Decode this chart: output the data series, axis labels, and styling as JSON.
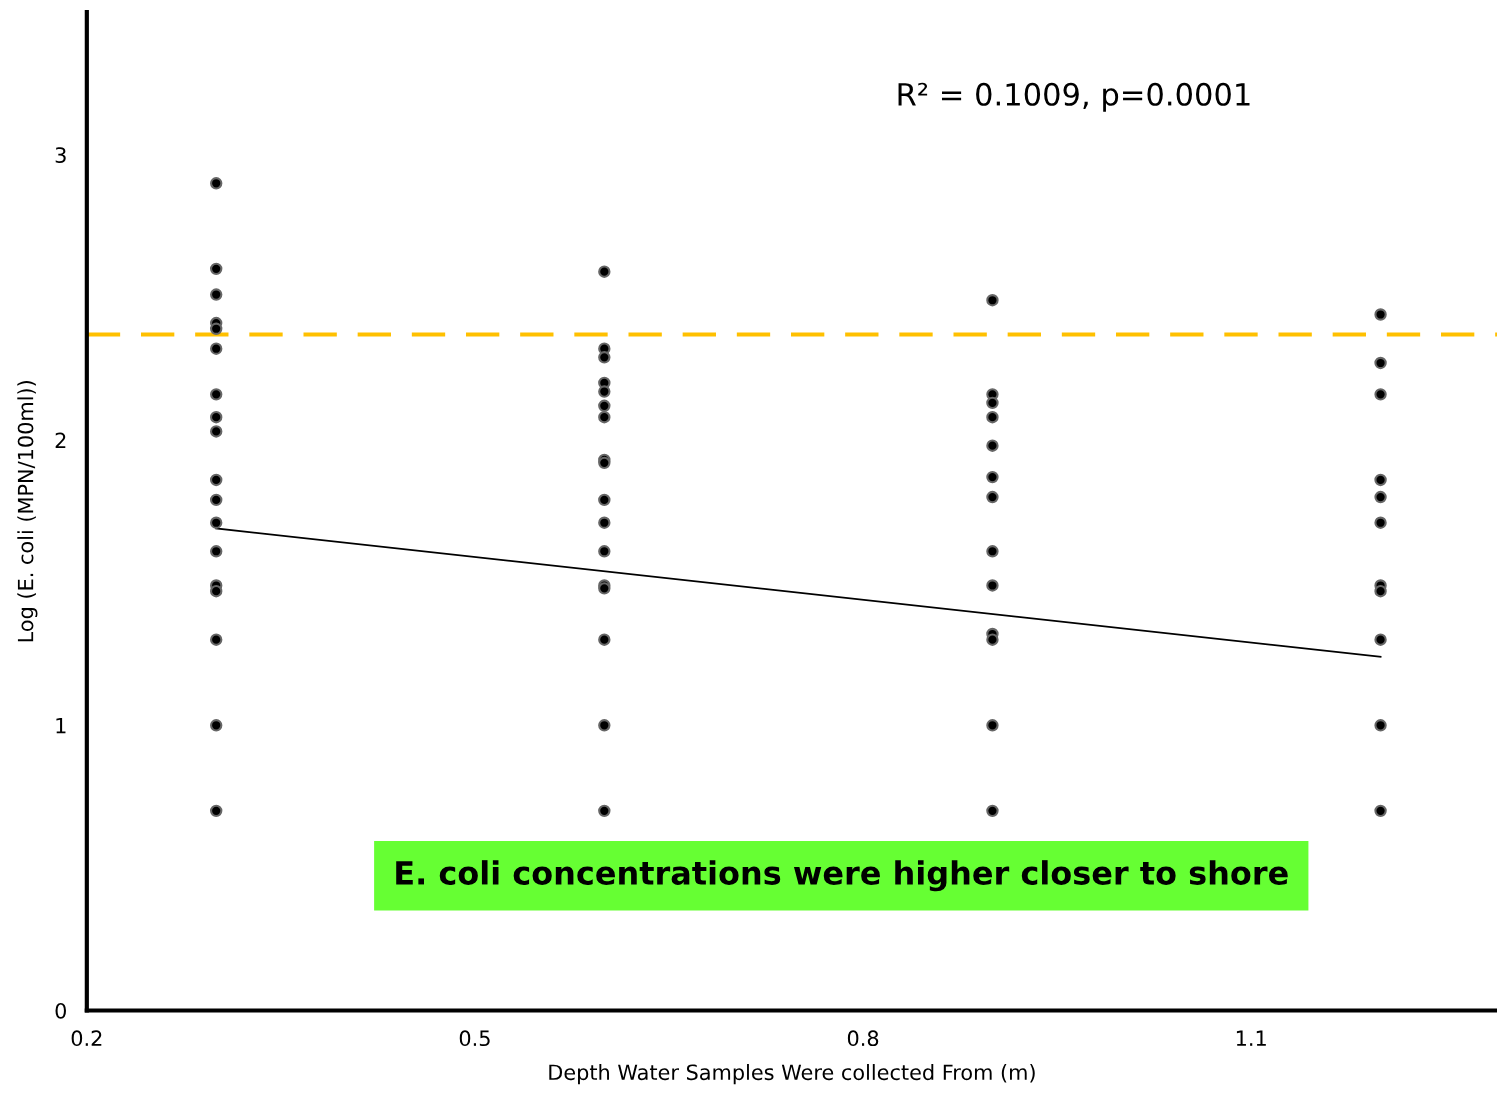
{
  "chart_data": {
    "type": "scatter",
    "xlabel": "Depth Water Samples Were collected From (m)",
    "ylabel": "Log (E. coli (MPN/100ml))",
    "xlim": [
      0.2,
      1.29
    ],
    "ylim": [
      0,
      3.5
    ],
    "xticks": [
      0.2,
      0.5,
      0.8,
      1.1
    ],
    "yticks": [
      0,
      1,
      2,
      3
    ],
    "grid": false,
    "marker": "circle",
    "series": [
      {
        "color": "#000000",
        "x": [
          0.3,
          0.3,
          0.3,
          0.3,
          0.3,
          0.3,
          0.3,
          0.3,
          0.3,
          0.3,
          0.3,
          0.3,
          0.3,
          0.3,
          0.3,
          0.3,
          0.3,
          0.3,
          0.6,
          0.6,
          0.6,
          0.6,
          0.6,
          0.6,
          0.6,
          0.6,
          0.6,
          0.6,
          0.6,
          0.6,
          0.6,
          0.6,
          0.6,
          0.6,
          0.6,
          0.9,
          0.9,
          0.9,
          0.9,
          0.9,
          0.9,
          0.9,
          0.9,
          0.9,
          0.9,
          0.9,
          0.9,
          0.9,
          1.2,
          1.2,
          1.2,
          1.2,
          1.2,
          1.2,
          1.2,
          1.2,
          1.2,
          1.2,
          1.2
        ],
        "values": [
          2.9,
          2.6,
          2.51,
          2.41,
          2.39,
          2.32,
          2.16,
          2.08,
          2.03,
          1.86,
          1.79,
          1.71,
          1.61,
          1.49,
          1.47,
          1.3,
          1.0,
          0.7,
          2.59,
          2.32,
          2.29,
          2.2,
          2.17,
          2.12,
          2.08,
          1.93,
          1.92,
          1.79,
          1.71,
          1.61,
          1.49,
          1.48,
          1.3,
          1.0,
          0.7,
          2.49,
          2.16,
          2.13,
          2.08,
          1.98,
          1.87,
          1.8,
          1.61,
          1.49,
          1.32,
          1.3,
          1.0,
          0.7,
          2.44,
          2.27,
          2.16,
          1.86,
          1.8,
          1.71,
          1.49,
          1.47,
          1.3,
          1.0,
          0.7
        ]
      },
      {
        "type": "line",
        "color": "#000000",
        "x": [
          0.3,
          1.2
        ],
        "values": [
          1.69,
          1.24
        ],
        "marker": "none"
      }
    ],
    "ref_lines": [
      {
        "axis": "y",
        "value": 2.37,
        "color": "#ffc000",
        "line_style": "dashed"
      }
    ],
    "annotations": [
      "R² = 0.1009, p=0.0001",
      "E. coli concentrations were higher closer to shore"
    ]
  }
}
